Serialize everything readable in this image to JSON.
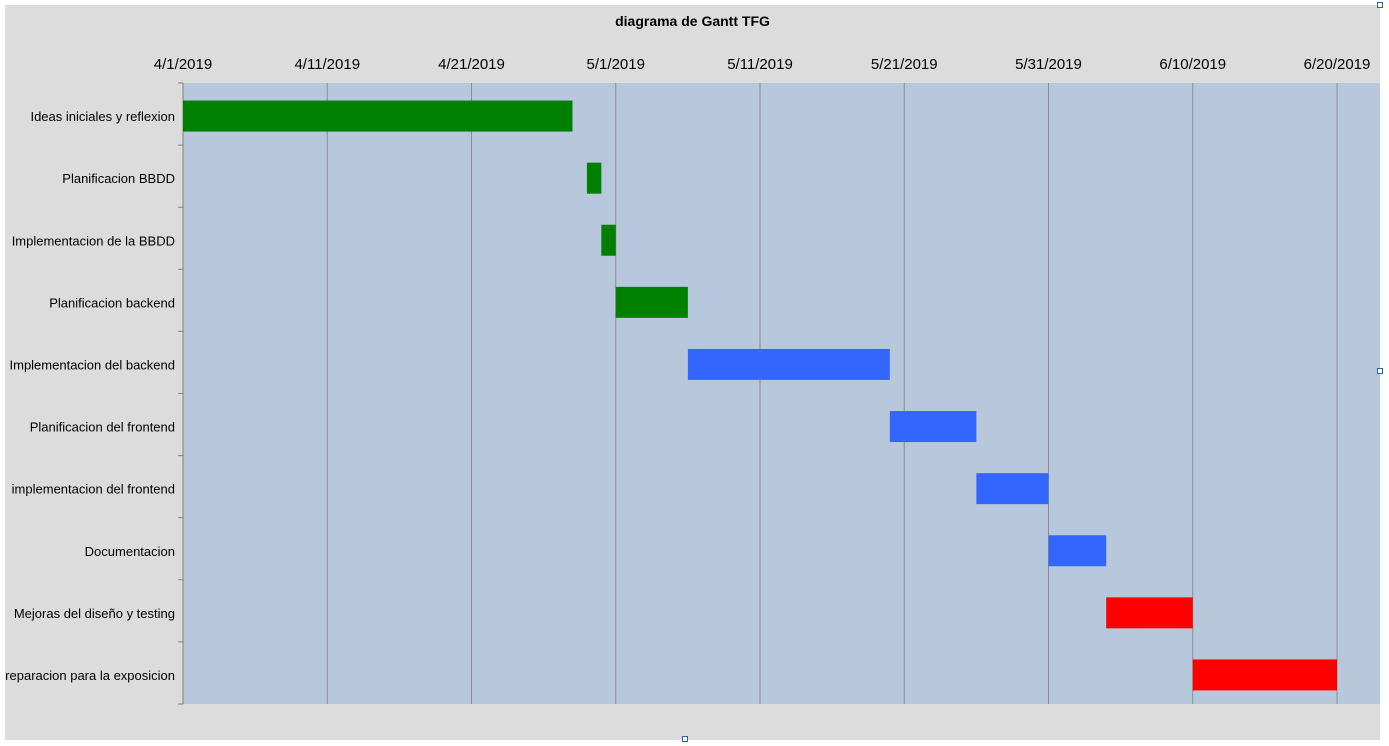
{
  "chart_data": {
    "type": "gantt",
    "title": "diagrama de Gantt TFG",
    "x_ticks": [
      "4/1/2019",
      "4/11/2019",
      "4/21/2019",
      "5/1/2019",
      "5/11/2019",
      "5/21/2019",
      "5/31/2019",
      "6/10/2019",
      "6/20/2019"
    ],
    "x_range": [
      "2019-04-01",
      "2019-06-21"
    ],
    "grid": true,
    "tasks": [
      {
        "name": "Ideas iniciales y reflexion",
        "start": "2019-04-01",
        "end": "2019-04-28",
        "color": "#008000"
      },
      {
        "name": "Planificacion BBDD",
        "start": "2019-04-29",
        "end": "2019-04-30",
        "color": "#008000"
      },
      {
        "name": "Implementacion de la BBDD",
        "start": "2019-04-30",
        "end": "2019-05-01",
        "color": "#008000"
      },
      {
        "name": "Planificacion backend",
        "start": "2019-05-01",
        "end": "2019-05-06",
        "color": "#008000"
      },
      {
        "name": "Implementacion del backend",
        "start": "2019-05-06",
        "end": "2019-05-20",
        "color": "#3366ff"
      },
      {
        "name": "Planificacion del frontend",
        "start": "2019-05-20",
        "end": "2019-05-26",
        "color": "#3366ff"
      },
      {
        "name": "implementacion del frontend",
        "start": "2019-05-26",
        "end": "2019-05-31",
        "color": "#3366ff"
      },
      {
        "name": "Documentacion",
        "start": "2019-05-31",
        "end": "2019-06-04",
        "color": "#3366ff"
      },
      {
        "name": "Mejoras del diseño y testing",
        "start": "2019-06-04",
        "end": "2019-06-10",
        "color": "#ff0000"
      },
      {
        "name": "reparacion para la exposicion",
        "start": "2019-06-10",
        "end": "2019-06-20",
        "color": "#ff0000"
      }
    ],
    "colors": {
      "chart_area": "#dcdcdc",
      "plot_area": "#b7c8dd",
      "gridline": "#8c8c8c"
    }
  }
}
